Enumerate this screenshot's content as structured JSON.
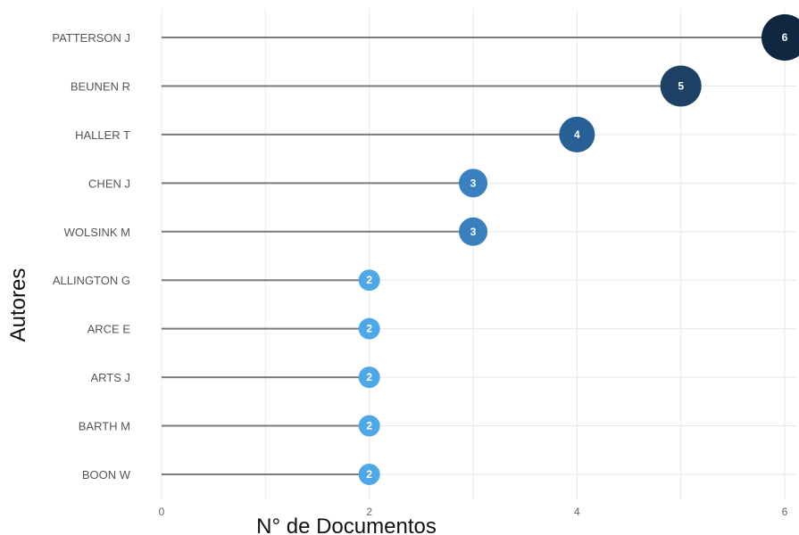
{
  "chart_data": {
    "type": "lollipop",
    "categories": [
      "PATTERSON J",
      "BEUNEN R",
      "HALLER T",
      "CHEN J",
      "WOLSINK M",
      "ALLINGTON G",
      "ARCE E",
      "ARTS J",
      "BARTH M",
      "BOON W"
    ],
    "values": [
      6,
      5,
      4,
      3,
      3,
      2,
      2,
      2,
      2,
      2
    ],
    "xlabel": "N° de Documentos",
    "ylabel": "Autores",
    "xlim": [
      0,
      6
    ],
    "x_ticks": [
      0,
      2,
      4,
      6
    ],
    "grid": true,
    "color_scale": {
      "6": "#0f2740",
      "5": "#1e4164",
      "4": "#285f94",
      "3": "#3a80bf",
      "2": "#4fa7e6"
    }
  }
}
